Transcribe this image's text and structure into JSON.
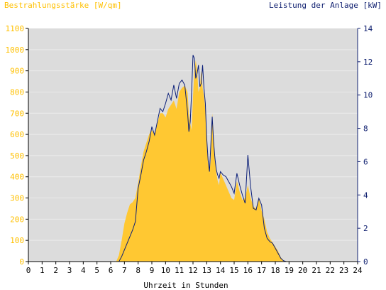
{
  "chart_data": {
    "type": "area",
    "ylabel_left": "Bestrahlungsstärke [W/qm]",
    "ylabel_right": "Leistung der Anlage [kW]",
    "xlabel": "Uhrzeit in Stunden",
    "xlim": [
      0,
      24
    ],
    "ylim_left": [
      0,
      1100
    ],
    "ylim_right": [
      0,
      14
    ],
    "x_ticks": [
      "0",
      "1",
      "2",
      "3",
      "4",
      "5",
      "6",
      "7",
      "8",
      "9",
      "10",
      "11",
      "12",
      "13",
      "14",
      "15",
      "16",
      "17",
      "18",
      "19",
      "20",
      "21",
      "22",
      "23",
      "24"
    ],
    "y_ticks_left": [
      "0",
      "100",
      "200",
      "300",
      "400",
      "500",
      "600",
      "700",
      "800",
      "900",
      "1000",
      "1100"
    ],
    "y_ticks_right": [
      "0",
      "2",
      "4",
      "6",
      "8",
      "10",
      "12",
      "14"
    ],
    "grid": true,
    "colors": {
      "irradiance": "#FFC832",
      "power_line": "#0A1E78",
      "plot_bg": "#DCDCDC",
      "left_axis_text": "#FFC000",
      "right_axis_text": "#102070",
      "axis_black": "#000000"
    },
    "series": [
      {
        "name": "Bestrahlungsstärke",
        "unit": "W/qm",
        "x": [
          0,
          6.4,
          6.6,
          6.8,
          7.0,
          7.2,
          7.4,
          7.6,
          7.8,
          8.0,
          8.2,
          8.4,
          8.6,
          8.8,
          9.0,
          9.2,
          9.4,
          9.6,
          9.8,
          10.0,
          10.2,
          10.4,
          10.6,
          10.8,
          11.0,
          11.2,
          11.4,
          11.6,
          11.7,
          11.8,
          11.9,
          12.0,
          12.1,
          12.2,
          12.3,
          12.4,
          12.5,
          12.6,
          12.7,
          12.8,
          12.9,
          13.0,
          13.1,
          13.2,
          13.3,
          13.4,
          13.5,
          13.6,
          13.7,
          13.8,
          13.9,
          14.0,
          14.2,
          14.4,
          14.6,
          14.8,
          15.0,
          15.2,
          15.4,
          15.6,
          15.8,
          16.0,
          16.2,
          16.4,
          16.6,
          16.8,
          17.0,
          17.2,
          17.4,
          17.6,
          17.8,
          18.0,
          18.2,
          18.4,
          18.6,
          19.0,
          24
        ],
        "y": [
          0,
          0,
          30,
          100,
          180,
          230,
          270,
          280,
          300,
          370,
          450,
          520,
          560,
          600,
          620,
          600,
          650,
          700,
          700,
          680,
          720,
          740,
          760,
          720,
          800,
          820,
          830,
          800,
          700,
          650,
          620,
          780,
          900,
          950,
          900,
          800,
          820,
          900,
          820,
          780,
          720,
          560,
          470,
          420,
          480,
          700,
          600,
          480,
          420,
          380,
          360,
          420,
          390,
          360,
          330,
          300,
          290,
          380,
          330,
          290,
          300,
          360,
          300,
          260,
          250,
          300,
          240,
          200,
          140,
          110,
          90,
          70,
          50,
          20,
          5,
          0,
          0
        ]
      },
      {
        "name": "Leistung der Anlage",
        "unit": "kW",
        "x": [
          0,
          6.6,
          6.8,
          7.0,
          7.2,
          7.4,
          7.6,
          7.8,
          8.0,
          8.2,
          8.4,
          8.6,
          8.8,
          9.0,
          9.2,
          9.4,
          9.6,
          9.8,
          10.0,
          10.2,
          10.4,
          10.6,
          10.8,
          11.0,
          11.2,
          11.4,
          11.6,
          11.7,
          11.8,
          11.9,
          12.0,
          12.1,
          12.2,
          12.3,
          12.4,
          12.5,
          12.6,
          12.7,
          12.8,
          12.9,
          13.0,
          13.1,
          13.2,
          13.3,
          13.4,
          13.5,
          13.6,
          13.7,
          13.8,
          13.9,
          14.0,
          14.2,
          14.4,
          14.6,
          14.8,
          15.0,
          15.2,
          15.4,
          15.6,
          15.8,
          16.0,
          16.2,
          16.4,
          16.6,
          16.8,
          17.0,
          17.2,
          17.4,
          17.6,
          17.8,
          18.0,
          18.2,
          18.4,
          18.6,
          18.8,
          24
        ],
        "y": [
          0,
          0,
          0.3,
          0.7,
          1.1,
          1.5,
          1.9,
          2.4,
          4.4,
          5.2,
          6.1,
          6.6,
          7.2,
          8.1,
          7.6,
          8.4,
          9.2,
          9.0,
          9.5,
          10.1,
          9.7,
          10.6,
          9.8,
          10.7,
          10.9,
          10.6,
          9.0,
          7.8,
          8.4,
          10.2,
          12.4,
          12.2,
          11.0,
          11.3,
          11.8,
          10.5,
          10.7,
          11.8,
          10.4,
          9.5,
          7.4,
          6.1,
          5.4,
          7.0,
          8.7,
          7.2,
          6.2,
          5.5,
          5.2,
          5.0,
          5.4,
          5.2,
          5.1,
          4.8,
          4.5,
          4.1,
          5.3,
          4.6,
          4.0,
          3.5,
          6.4,
          4.5,
          3.2,
          3.1,
          3.8,
          3.4,
          2.0,
          1.4,
          1.2,
          1.1,
          0.8,
          0.5,
          0.2,
          0.05,
          0,
          0
        ]
      }
    ]
  }
}
